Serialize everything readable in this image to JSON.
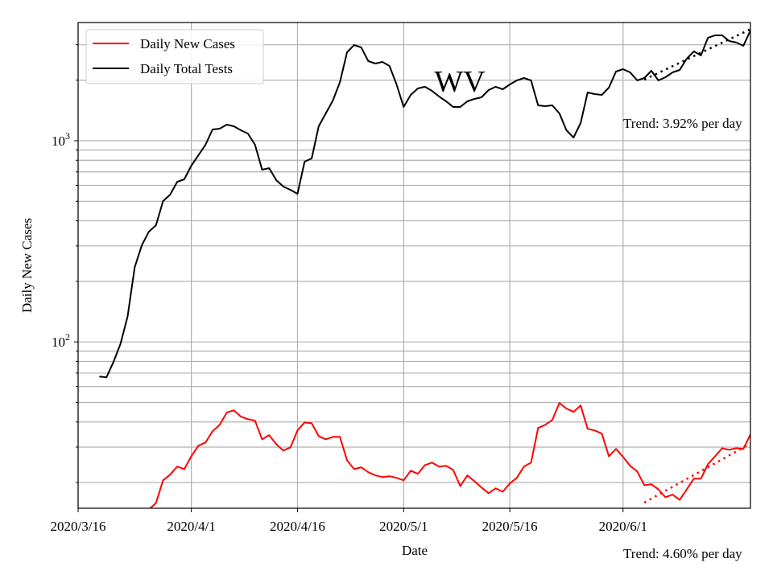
{
  "chart_data": {
    "type": "line",
    "title": "WV",
    "xlabel": "Date",
    "ylabel": "Daily New Cases",
    "yscale": "log",
    "ylim": [
      14.9,
      3870
    ],
    "x_origin_date": "2020/3/16",
    "xlim_days": [
      0,
      95
    ],
    "grid": true,
    "legend_placement": "top-left",
    "x_ticks": [
      {
        "day": 0,
        "label": "2020/3/16"
      },
      {
        "day": 16,
        "label": "2020/4/1"
      },
      {
        "day": 31,
        "label": "2020/4/16"
      },
      {
        "day": 46,
        "label": "2020/5/1"
      },
      {
        "day": 61,
        "label": "2020/5/16"
      },
      {
        "day": 77,
        "label": "2020/6/1"
      }
    ],
    "y_ticks": [
      {
        "value": 100,
        "base": "10",
        "exp": "2"
      },
      {
        "value": 1000,
        "base": "10",
        "exp": "3"
      }
    ],
    "series": [
      {
        "name": "Daily New Cases",
        "color": "#ff0000",
        "start_day": 10,
        "values": [
          14.7,
          15.8,
          20.5,
          21.9,
          24.0,
          23.3,
          27.0,
          30.5,
          31.6,
          36.0,
          38.7,
          44.5,
          45.7,
          42.5,
          41.3,
          40.6,
          32.8,
          34.4,
          31.0,
          28.8,
          29.9,
          36.3,
          39.8,
          39.4,
          34.0,
          32.8,
          33.7,
          33.7,
          25.8,
          23.3,
          23.8,
          22.5,
          21.7,
          21.3,
          21.5,
          21.1,
          20.5,
          22.9,
          22.1,
          24.4,
          25.1,
          24.0,
          24.2,
          23.1,
          19.2,
          21.7,
          20.3,
          18.9,
          17.7,
          18.7,
          18.0,
          19.8,
          21.1,
          24.0,
          25.1,
          37.3,
          38.7,
          40.9,
          49.7,
          46.6,
          44.9,
          48.3,
          37.0,
          36.3,
          35.0,
          27.0,
          29.4,
          26.8,
          24.2,
          22.7,
          19.4,
          19.6,
          18.5,
          16.9,
          17.4,
          16.4,
          18.5,
          20.9,
          20.9,
          24.7,
          27.0,
          29.6,
          29.1,
          29.6,
          29.4,
          34.7
        ],
        "trend": {
          "start_day": 80,
          "end_day": 95,
          "start_value": 15.9,
          "rate_pct_per_day": 4.6,
          "label": "Trend: 4.60% per day"
        }
      },
      {
        "name": "Daily Total Tests",
        "color": "#000000",
        "start_day": 3,
        "values": [
          67.3,
          66.7,
          79.4,
          98,
          134,
          235,
          302,
          353,
          380,
          501,
          540,
          625,
          643,
          752,
          847,
          955,
          1138,
          1148,
          1202,
          1180,
          1127,
          1086,
          955,
          718,
          731,
          637,
          592,
          570,
          545,
          787,
          817,
          1180,
          1368,
          1585,
          1959,
          2754,
          2992,
          2911,
          2489,
          2421,
          2466,
          2355,
          1905,
          1472,
          1690,
          1820,
          1854,
          1770,
          1660,
          1570,
          1472,
          1472,
          1570,
          1614,
          1644,
          1786,
          1854,
          1803,
          1905,
          1995,
          2051,
          1995,
          1500,
          1486,
          1500,
          1368,
          1127,
          1038,
          1225,
          1738,
          1706,
          1690,
          1837,
          2208,
          2270,
          2188,
          1995,
          2051,
          2228,
          1995,
          2070,
          2188,
          2249,
          2559,
          2780,
          2655,
          3251,
          3342,
          3342,
          3133,
          3076,
          2965,
          3532
        ],
        "trend": {
          "start_day": 80,
          "end_day": 95,
          "start_value": 2013,
          "rate_pct_per_day": 3.92,
          "label": "Trend: 3.92% per day"
        }
      }
    ]
  }
}
